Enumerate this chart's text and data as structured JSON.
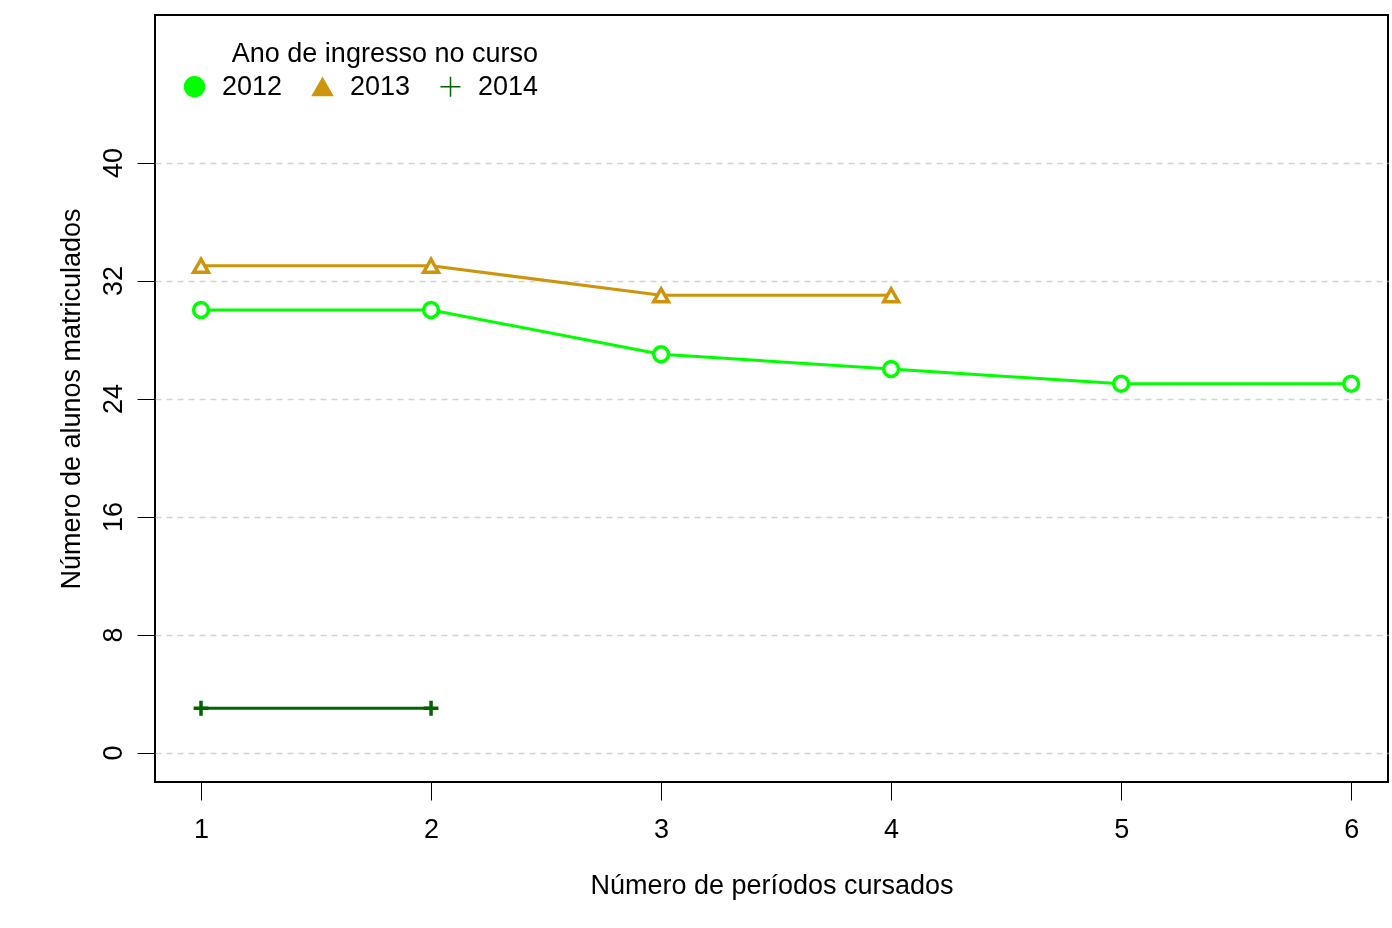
{
  "chart_data": {
    "type": "line",
    "xlabel": "Número de períodos cursados",
    "ylabel": "Número de alunos matriculados",
    "legend_title": "Ano de ingresso no curso",
    "x": [
      1,
      2,
      3,
      4,
      5,
      6
    ],
    "series": [
      {
        "name": "2012",
        "color": "#00ff00",
        "marker": "circle",
        "values": [
          30,
          30,
          27,
          26,
          25,
          25
        ]
      },
      {
        "name": "2013",
        "color": "#cd950c",
        "marker": "triangle",
        "values": [
          33,
          33,
          31,
          31,
          null,
          null
        ]
      },
      {
        "name": "2014",
        "color": "#006400",
        "marker": "cross",
        "values": [
          3,
          3,
          null,
          null,
          null,
          null
        ]
      }
    ],
    "xlim": [
      0.8,
      6.16
    ],
    "xticks": [
      1,
      2,
      3,
      4,
      5,
      6
    ],
    "ylim": [
      -2,
      50
    ],
    "yticks": [
      0,
      8,
      16,
      24,
      32,
      40
    ],
    "grid": "y",
    "legend": "top left",
    "line_style": "solid"
  }
}
